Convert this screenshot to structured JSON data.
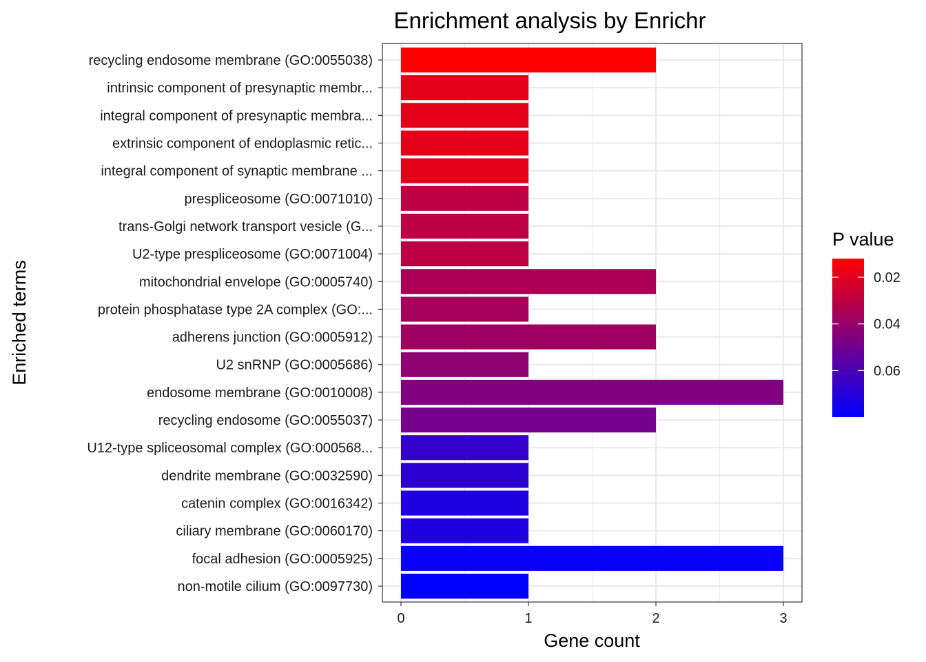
{
  "chart_data": {
    "type": "bar",
    "orientation": "horizontal",
    "title": "Enrichment analysis by Enrichr",
    "xlabel": "Gene count",
    "ylabel": "Enriched terms",
    "xlim": [
      0,
      3
    ],
    "x_ticks": [
      0,
      1,
      2,
      3
    ],
    "grid": true,
    "categories": [
      "recycling endosome membrane (GO:0055038)",
      "intrinsic component of presynaptic membr...",
      "integral component of presynaptic membra...",
      "extrinsic component of endoplasmic retic...",
      "integral component of synaptic membrane ...",
      "prespliceosome (GO:0071010)",
      "trans-Golgi network transport vesicle (G...",
      "U2-type prespliceosome (GO:0071004)",
      "mitochondrial envelope (GO:0005740)",
      "protein phosphatase type 2A complex (GO:...",
      "adherens junction (GO:0005912)",
      "U2 snRNP (GO:0005686)",
      "endosome membrane (GO:0010008)",
      "recycling endosome (GO:0055037)",
      "U12-type spliceosomal complex (GO:000568...",
      "dendrite membrane (GO:0032590)",
      "catenin complex (GO:0016342)",
      "ciliary membrane (GO:0060170)",
      "focal adhesion (GO:0005925)",
      "non-motile cilium (GO:0097730)"
    ],
    "values": [
      2,
      1,
      1,
      1,
      1,
      1,
      1,
      1,
      2,
      1,
      2,
      1,
      3,
      2,
      1,
      1,
      1,
      1,
      3,
      1
    ],
    "p_values": [
      0.012,
      0.019,
      0.019,
      0.019,
      0.019,
      0.03,
      0.03,
      0.03,
      0.035,
      0.036,
      0.038,
      0.042,
      0.046,
      0.049,
      0.066,
      0.068,
      0.072,
      0.072,
      0.078,
      0.08
    ],
    "legend": {
      "title": "P value",
      "position": "right",
      "labels": [
        "0.02",
        "0.04",
        "0.06"
      ],
      "label_values": [
        0.02,
        0.04,
        0.06
      ],
      "domain": [
        0.012,
        0.08
      ],
      "color_low": "#FF0000",
      "color_high": "#0000FF"
    }
  }
}
